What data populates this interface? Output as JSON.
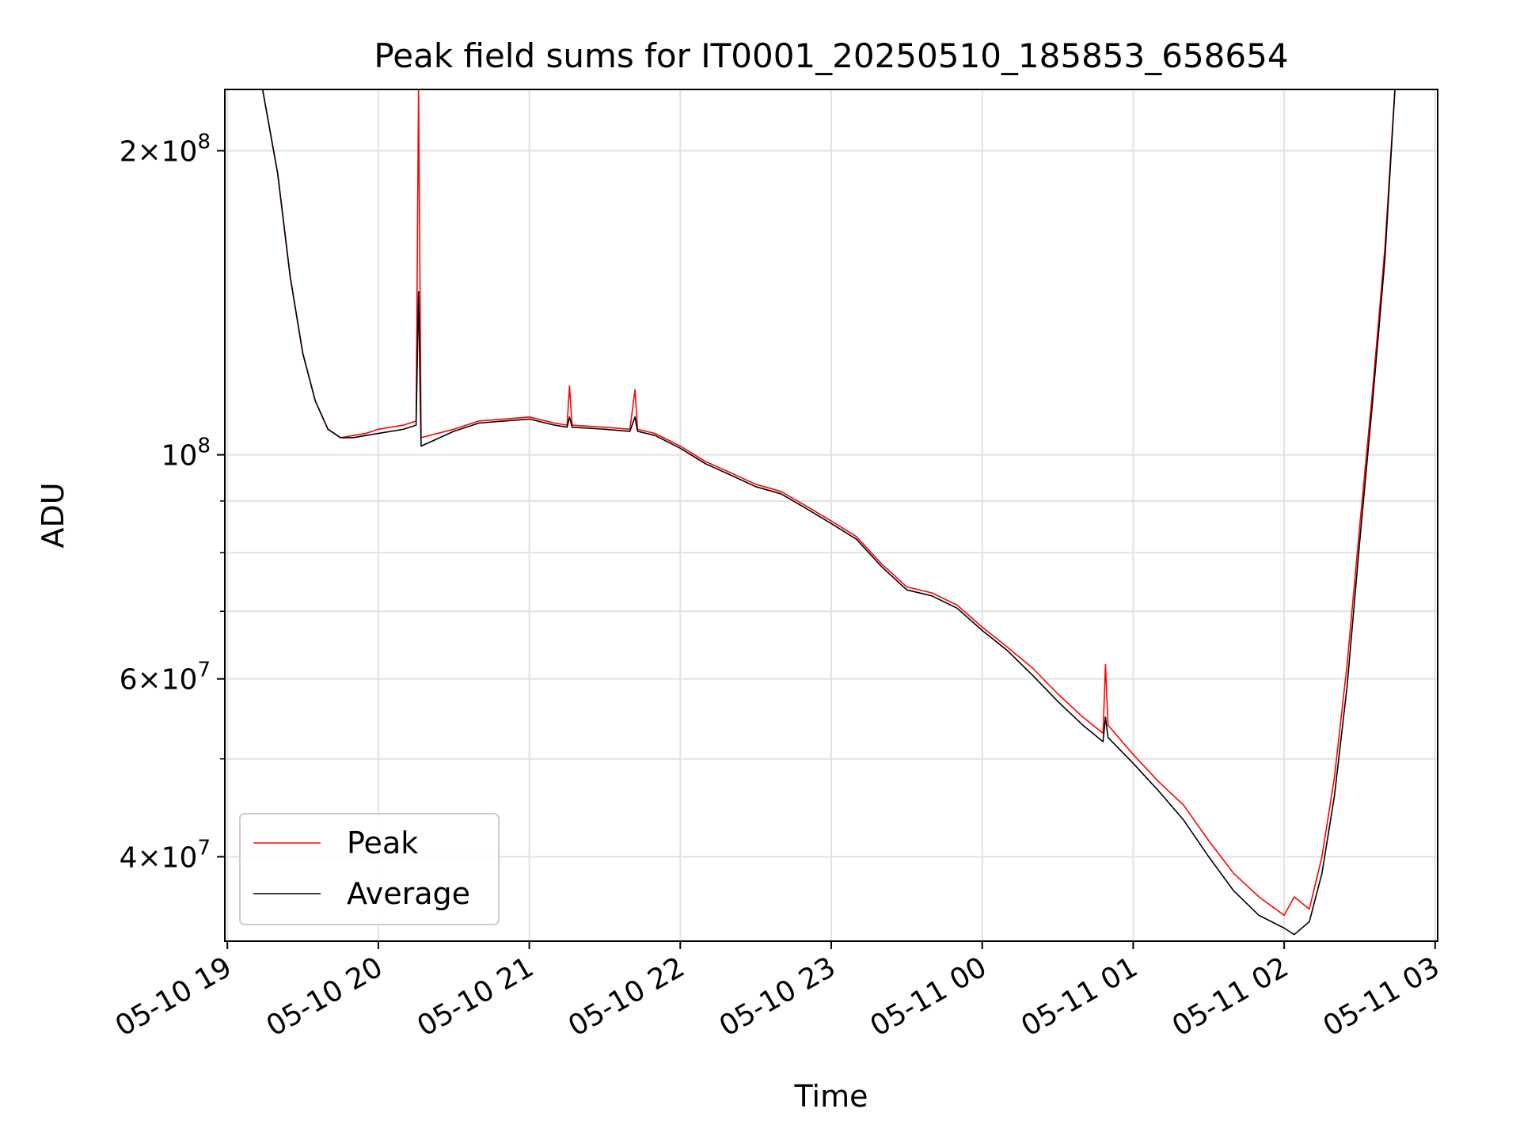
{
  "chart_data": {
    "type": "line",
    "title": "Peak field sums for IT0001_20250510_185853_658654",
    "xlabel": "Time",
    "ylabel": "ADU",
    "y_scale": "log",
    "ylim": [
      33000000,
      230000000
    ],
    "xlim": [
      "2025-05-10 18:59",
      "2025-05-11 03:01"
    ],
    "x_ticks": [
      {
        "t": "2025-05-10 19:00",
        "label": "05-10 19"
      },
      {
        "t": "2025-05-10 20:00",
        "label": "05-10 20"
      },
      {
        "t": "2025-05-10 21:00",
        "label": "05-10 21"
      },
      {
        "t": "2025-05-10 22:00",
        "label": "05-10 22"
      },
      {
        "t": "2025-05-10 23:00",
        "label": "05-10 23"
      },
      {
        "t": "2025-05-11 00:00",
        "label": "05-11 00"
      },
      {
        "t": "2025-05-11 01:00",
        "label": "05-11 01"
      },
      {
        "t": "2025-05-11 02:00",
        "label": "05-11 02"
      },
      {
        "t": "2025-05-11 03:00",
        "label": "05-11 03"
      }
    ],
    "y_major_ticks": [
      {
        "value": 40000000,
        "mant": "4",
        "exp": "7"
      },
      {
        "value": 60000000,
        "mant": "6",
        "exp": "7"
      },
      {
        "value": 100000000,
        "mant": "",
        "exp": "8"
      },
      {
        "value": 200000000,
        "mant": "2",
        "exp": "8"
      }
    ],
    "y_minor_ticks": [
      50000000,
      70000000,
      80000000,
      90000000
    ],
    "grid": true,
    "legend_position": "lower-left",
    "series": [
      {
        "name": "Peak",
        "color": "#ff0000",
        "x": [
          "2025-05-10 19:14",
          "2025-05-10 19:20",
          "2025-05-10 19:25",
          "2025-05-10 19:30",
          "2025-05-10 19:35",
          "2025-05-10 19:40",
          "2025-05-10 19:45",
          "2025-05-10 19:50",
          "2025-05-10 19:55",
          "2025-05-10 20:00",
          "2025-05-10 20:10",
          "2025-05-10 20:15",
          "2025-05-10 20:16",
          "2025-05-10 20:17",
          "2025-05-10 20:30",
          "2025-05-10 20:40",
          "2025-05-10 20:50",
          "2025-05-10 21:00",
          "2025-05-10 21:10",
          "2025-05-10 21:15",
          "2025-05-10 21:16",
          "2025-05-10 21:17",
          "2025-05-10 21:30",
          "2025-05-10 21:40",
          "2025-05-10 21:42",
          "2025-05-10 21:43",
          "2025-05-10 21:50",
          "2025-05-10 22:00",
          "2025-05-10 22:10",
          "2025-05-10 22:20",
          "2025-05-10 22:30",
          "2025-05-10 22:40",
          "2025-05-10 22:50",
          "2025-05-10 23:00",
          "2025-05-10 23:10",
          "2025-05-10 23:20",
          "2025-05-10 23:30",
          "2025-05-10 23:40",
          "2025-05-10 23:50",
          "2025-05-11 00:00",
          "2025-05-11 00:10",
          "2025-05-11 00:20",
          "2025-05-11 00:30",
          "2025-05-11 00:40",
          "2025-05-11 00:48",
          "2025-05-11 00:49",
          "2025-05-11 00:50",
          "2025-05-11 01:00",
          "2025-05-11 01:10",
          "2025-05-11 01:20",
          "2025-05-11 01:30",
          "2025-05-11 01:40",
          "2025-05-11 01:50",
          "2025-05-11 02:00",
          "2025-05-11 02:04",
          "2025-05-11 02:10",
          "2025-05-11 02:15",
          "2025-05-11 02:20",
          "2025-05-11 02:25",
          "2025-05-11 02:30",
          "2025-05-11 02:35",
          "2025-05-11 02:40",
          "2025-05-11 02:44"
        ],
        "y": [
          230000000,
          190000000,
          150000000,
          126000000,
          113000000,
          106000000,
          104000000,
          104500000,
          105000000,
          106000000,
          107000000,
          108000000,
          230000000,
          104000000,
          106000000,
          108000000,
          108500000,
          109000000,
          107500000,
          107000000,
          117000000,
          107000000,
          106500000,
          106000000,
          116000000,
          106000000,
          105000000,
          102000000,
          98500000,
          96000000,
          93500000,
          92000000,
          89000000,
          86000000,
          83000000,
          78000000,
          74000000,
          73000000,
          71000000,
          67500000,
          64500000,
          61500000,
          58000000,
          55000000,
          53000000,
          62000000,
          54000000,
          50500000,
          47500000,
          45000000,
          41500000,
          38500000,
          36500000,
          35000000,
          36500000,
          35500000,
          40000000,
          48000000,
          62000000,
          85000000,
          115000000,
          160000000,
          230000000
        ]
      },
      {
        "name": "Average",
        "color": "#000000",
        "x": [
          "2025-05-10 19:14",
          "2025-05-10 19:20",
          "2025-05-10 19:25",
          "2025-05-10 19:30",
          "2025-05-10 19:35",
          "2025-05-10 19:40",
          "2025-05-10 19:45",
          "2025-05-10 19:50",
          "2025-05-10 19:55",
          "2025-05-10 20:00",
          "2025-05-10 20:10",
          "2025-05-10 20:15",
          "2025-05-10 20:16",
          "2025-05-10 20:17",
          "2025-05-10 20:30",
          "2025-05-10 20:40",
          "2025-05-10 20:50",
          "2025-05-10 21:00",
          "2025-05-10 21:10",
          "2025-05-10 21:15",
          "2025-05-10 21:16",
          "2025-05-10 21:17",
          "2025-05-10 21:30",
          "2025-05-10 21:40",
          "2025-05-10 21:42",
          "2025-05-10 21:43",
          "2025-05-10 21:50",
          "2025-05-10 22:00",
          "2025-05-10 22:10",
          "2025-05-10 22:20",
          "2025-05-10 22:30",
          "2025-05-10 22:40",
          "2025-05-10 22:50",
          "2025-05-10 23:00",
          "2025-05-10 23:10",
          "2025-05-10 23:20",
          "2025-05-10 23:30",
          "2025-05-10 23:40",
          "2025-05-10 23:50",
          "2025-05-11 00:00",
          "2025-05-11 00:10",
          "2025-05-11 00:20",
          "2025-05-11 00:30",
          "2025-05-11 00:40",
          "2025-05-11 00:48",
          "2025-05-11 00:49",
          "2025-05-11 00:50",
          "2025-05-11 01:00",
          "2025-05-11 01:10",
          "2025-05-11 01:20",
          "2025-05-11 01:30",
          "2025-05-11 01:40",
          "2025-05-11 01:50",
          "2025-05-11 02:00",
          "2025-05-11 02:04",
          "2025-05-11 02:10",
          "2025-05-11 02:15",
          "2025-05-11 02:20",
          "2025-05-11 02:25",
          "2025-05-11 02:30",
          "2025-05-11 02:35",
          "2025-05-11 02:40",
          "2025-05-11 02:44"
        ],
        "y": [
          230000000,
          190000000,
          150000000,
          126000000,
          113000000,
          106000000,
          104000000,
          104000000,
          104500000,
          105000000,
          106000000,
          107000000,
          145000000,
          102000000,
          105500000,
          107500000,
          108000000,
          108500000,
          107000000,
          106500000,
          109000000,
          106500000,
          106000000,
          105500000,
          109000000,
          105500000,
          104500000,
          101500000,
          98000000,
          95500000,
          93000000,
          91500000,
          88500000,
          85500000,
          82500000,
          77500000,
          73500000,
          72500000,
          70500000,
          67000000,
          64000000,
          60500000,
          57000000,
          54000000,
          52000000,
          55000000,
          52500000,
          49500000,
          46500000,
          43500000,
          40000000,
          37000000,
          35000000,
          34000000,
          33500000,
          34500000,
          38500000,
          46000000,
          59000000,
          82000000,
          112000000,
          156000000,
          230000000
        ]
      }
    ]
  }
}
